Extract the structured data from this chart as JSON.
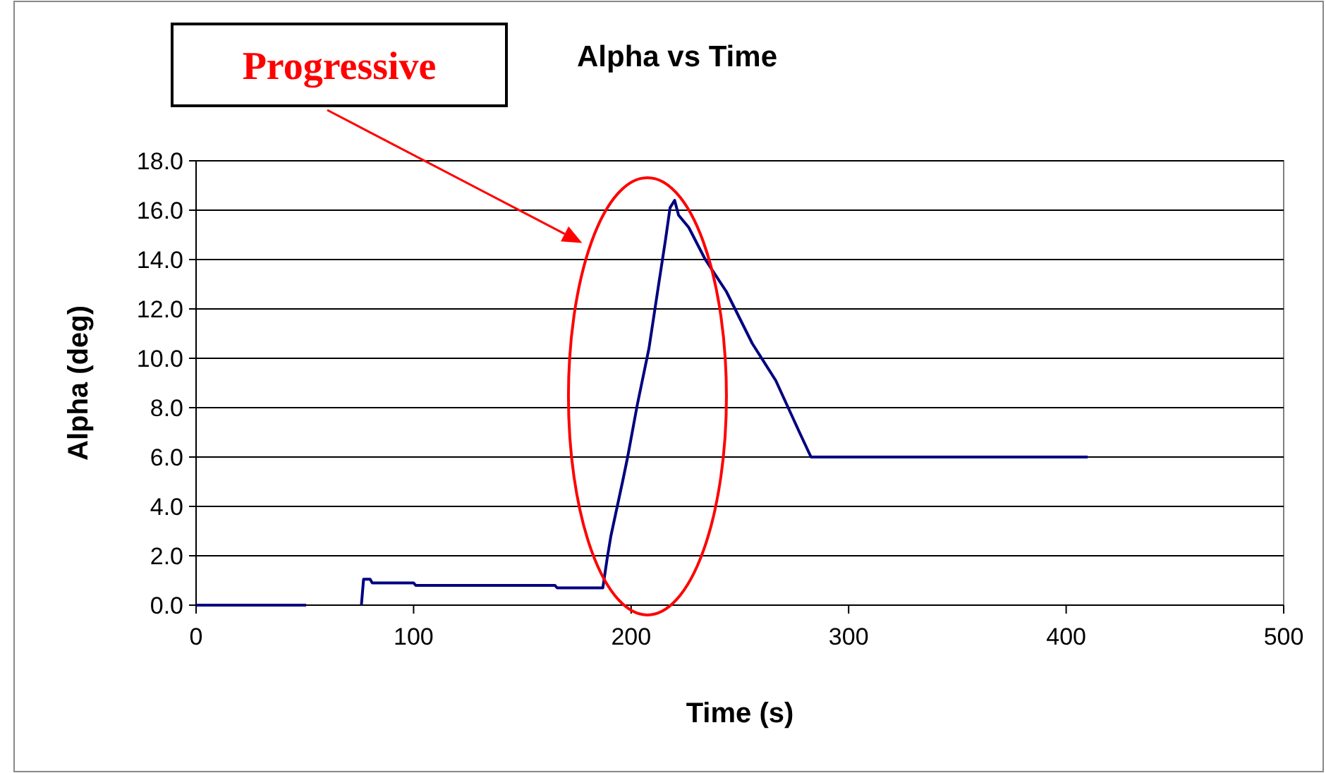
{
  "chart_data": {
    "type": "line",
    "title": "Alpha vs Time",
    "xlabel": "Time (s)",
    "ylabel": "Alpha (deg)",
    "annotations": [
      "Progressive"
    ],
    "xlim": [
      0,
      500
    ],
    "xticks": [
      0,
      100,
      200,
      300,
      400,
      500
    ],
    "ylim": [
      0,
      18
    ],
    "yticks": [
      {
        "value": 0,
        "label": "0.0"
      },
      {
        "value": 2,
        "label": "2.0"
      },
      {
        "value": 4,
        "label": "4.0"
      },
      {
        "value": 6,
        "label": "6.0"
      },
      {
        "value": 8,
        "label": "8.0"
      },
      {
        "value": 10,
        "label": "10.0"
      },
      {
        "value": 12,
        "label": "12.0"
      },
      {
        "value": 14,
        "label": "14.0"
      },
      {
        "value": 16,
        "label": "16.0"
      },
      {
        "value": 18,
        "label": "18.0"
      }
    ],
    "grid": "y",
    "marker": "none",
    "line_style": "solid",
    "series": [
      {
        "color": "#000080",
        "x": [
          0,
          50.6
        ],
        "values": [
          0,
          0
        ]
      },
      {
        "color": "#000080",
        "x": [
          76,
          77,
          80,
          81,
          100,
          101,
          165,
          166,
          187,
          189,
          190.7,
          196.3,
          198.4,
          202.8,
          208.2,
          212.5,
          215.8,
          217.9,
          220,
          221.8,
          226.5,
          234.1,
          243.8,
          255.7,
          266.5,
          277.4,
          282.7,
          300,
          350,
          409.9
        ],
        "values": [
          0,
          1.05,
          1.05,
          0.9,
          0.9,
          0.8,
          0.8,
          0.7,
          0.7,
          1.9,
          2.8,
          5.1,
          6.0,
          8.1,
          10.4,
          12.9,
          14.8,
          16.1,
          16.4,
          15.8,
          15.3,
          14.0,
          12.7,
          10.6,
          9.1,
          7.0,
          6.0,
          6.0,
          6.0,
          6.0
        ]
      }
    ]
  }
}
